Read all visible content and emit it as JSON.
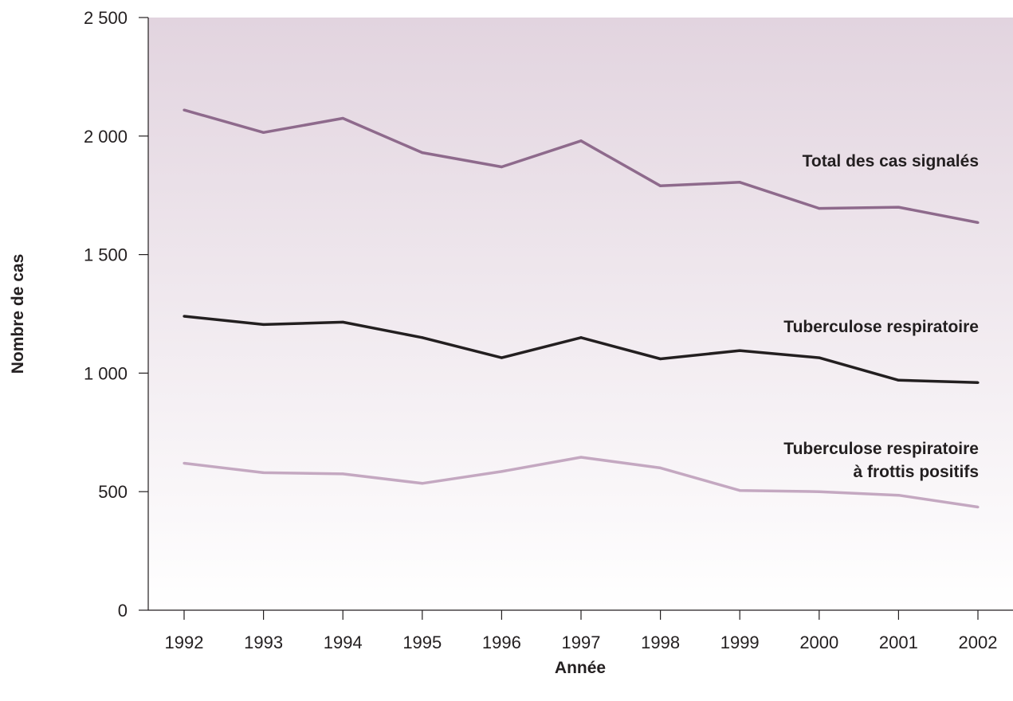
{
  "chart_data": {
    "type": "line",
    "title": "",
    "xlabel": "Année",
    "ylabel": "Nombre de cas",
    "x": [
      "1992",
      "1993",
      "1994",
      "1995",
      "1996",
      "1997",
      "1998",
      "1999",
      "2000",
      "2001",
      "2002"
    ],
    "ylim": [
      0,
      2500
    ],
    "yticks": [
      0,
      500,
      1000,
      1500,
      2000,
      2500
    ],
    "ytick_labels": [
      "0",
      "500",
      "1 000",
      "1 500",
      "2 000",
      "2 500"
    ],
    "grid": false,
    "series": [
      {
        "name": "Total des cas signalés",
        "values": [
          2110,
          2015,
          2075,
          1930,
          1870,
          1980,
          1790,
          1805,
          1695,
          1700,
          1635
        ],
        "color": "#8e6a8c"
      },
      {
        "name": "Tuberculose respiratoire",
        "values": [
          1240,
          1205,
          1215,
          1150,
          1065,
          1150,
          1060,
          1095,
          1065,
          970,
          960
        ],
        "color": "#231f20"
      },
      {
        "name": "Tuberculose respiratoire",
        "name_line2": "à frottis positifs",
        "values": [
          620,
          580,
          575,
          535,
          585,
          645,
          600,
          505,
          500,
          485,
          435
        ],
        "color": "#c4a8c1"
      }
    ],
    "background_gradient": [
      "#e2d4df",
      "#ffffff"
    ]
  }
}
